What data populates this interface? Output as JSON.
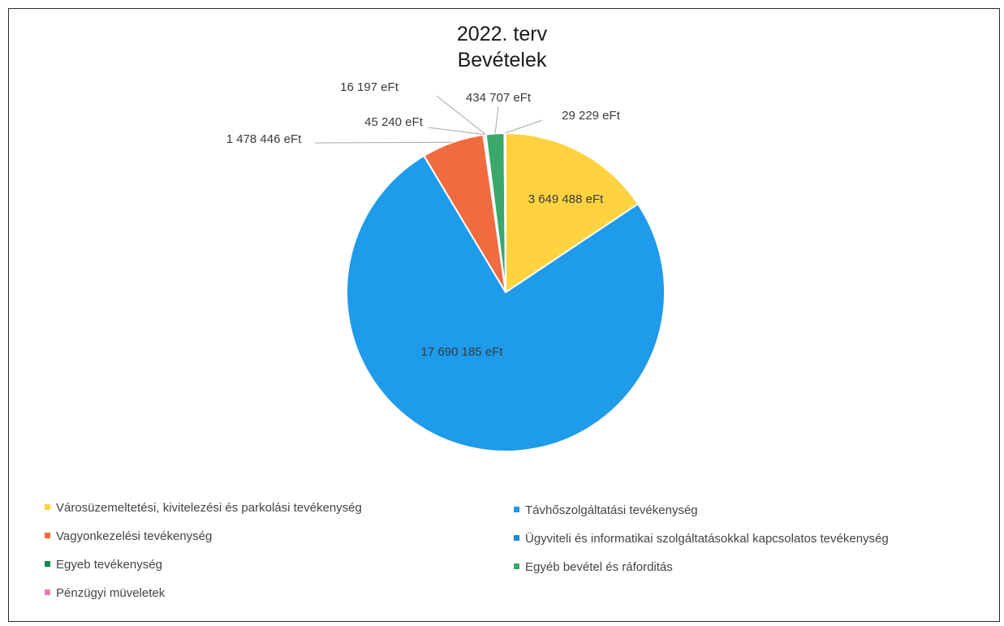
{
  "chart_data": {
    "type": "pie",
    "title": "2022. terv",
    "subtitle": "Bevételek",
    "unit": "eFt",
    "slices": [
      {
        "name": "Városüzemeltetési, kivitelezési és parkolási tevékenység",
        "value": 3649488,
        "label": "3 649 488 eFt",
        "color": "#ffd33f"
      },
      {
        "name": "Távhőszolgáltatási tevékenység",
        "value": 17690185,
        "label": "17 690 185 eFt",
        "color": "#1e9bea"
      },
      {
        "name": "Vagyonkezelési tevékenység",
        "value": 1478446,
        "label": "1 478 446 eFt",
        "color": "#f26a3f"
      },
      {
        "name": "Ügyviteli és informatikai szolgáltatásokkal kapcsolatos tevékenység",
        "value": 45240,
        "label": "45 240 eFt",
        "color": "#1a8be0"
      },
      {
        "name": "Egyeb tevékenység",
        "value": 16197,
        "label": "16 197 eFt",
        "color": "#0a8a4a"
      },
      {
        "name": "Egyéb bevétel és ráforditás",
        "value": 434707,
        "label": "434 707 eFt",
        "color": "#3aa86b"
      },
      {
        "name": "Pénzügyi müveletek",
        "value": 29229,
        "label": "29 229 eFt",
        "color": "#e87fb4"
      }
    ],
    "legend_position": "bottom"
  }
}
